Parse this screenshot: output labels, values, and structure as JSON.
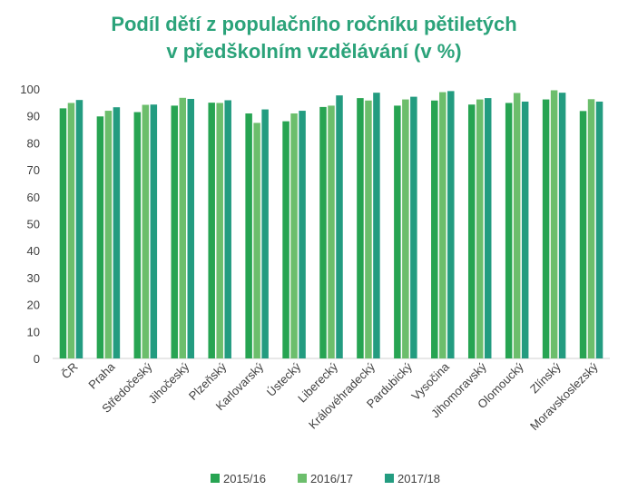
{
  "chart_data": {
    "type": "bar",
    "title_lines": [
      "Podíl dětí z populačního ročníku pětiletých",
      "v předškolním vzdělávání (v %)"
    ],
    "xlabel": "",
    "ylabel": "",
    "ylim": [
      0,
      100
    ],
    "yticks": [
      0,
      10,
      20,
      30,
      40,
      50,
      60,
      70,
      80,
      90,
      100
    ],
    "grid": false,
    "legend_position": "bottom",
    "categories": [
      "ČR",
      "Praha",
      "Středočeský",
      "Jihočeský",
      "Plzeňský",
      "Karlovarský",
      "Ústecký",
      "Liberecký",
      "Královéhradecký",
      "Pardubický",
      "Vysočina",
      "Jihomoravský",
      "Olomoucký",
      "Zlínský",
      "Moravskoslezský"
    ],
    "series": [
      {
        "name": "2015/16",
        "color": "#27a452",
        "values": [
          92.8,
          89.8,
          91.4,
          93.8,
          94.9,
          90.9,
          88.0,
          93.3,
          96.6,
          93.8,
          95.7,
          94.2,
          94.8,
          96.1,
          91.8
        ]
      },
      {
        "name": "2016/17",
        "color": "#6cbe6c",
        "values": [
          94.8,
          91.9,
          94.1,
          96.7,
          94.8,
          87.4,
          90.9,
          93.8,
          95.7,
          96.1,
          98.8,
          96.1,
          98.5,
          99.5,
          96.2
        ]
      },
      {
        "name": "2017/18",
        "color": "#239c80",
        "values": [
          95.9,
          93.2,
          94.2,
          96.3,
          95.8,
          92.4,
          91.9,
          97.6,
          98.6,
          97.1,
          99.2,
          96.6,
          95.3,
          98.6,
          95.3
        ]
      }
    ]
  }
}
